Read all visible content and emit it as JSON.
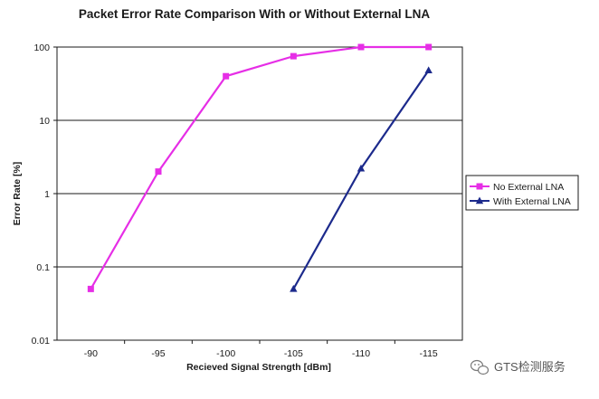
{
  "chart_data": {
    "type": "line",
    "title": "Packet Error Rate Comparison With or Without External LNA",
    "xlabel": "Recieved Signal Strength [dBm]",
    "ylabel": "Error Rate [%]",
    "x": [
      -90,
      -95,
      -100,
      -105,
      -110,
      -115
    ],
    "x_tick_labels": [
      "-90",
      "-95",
      "-100",
      "-105",
      "-110",
      "-115"
    ],
    "y_scale": "log",
    "ylim": [
      0.01,
      100
    ],
    "y_tick_labels": [
      "0.01",
      "0.1",
      "1",
      "10",
      "100"
    ],
    "grid": "horizontal",
    "legend_position": "right",
    "series": [
      {
        "name": "No External LNA",
        "color": "#e62ee6",
        "marker": "square",
        "x": [
          -90,
          -95,
          -100,
          -105,
          -110,
          -115
        ],
        "values": [
          0.05,
          2,
          40,
          75,
          100,
          100
        ]
      },
      {
        "name": "With External LNA",
        "color": "#1c2a8c",
        "marker": "triangle",
        "x": [
          -105,
          -110,
          -115
        ],
        "values": [
          0.05,
          2.2,
          48
        ]
      }
    ]
  },
  "watermark": {
    "text": "GTS检测服务",
    "icon": "wechat-icon"
  }
}
